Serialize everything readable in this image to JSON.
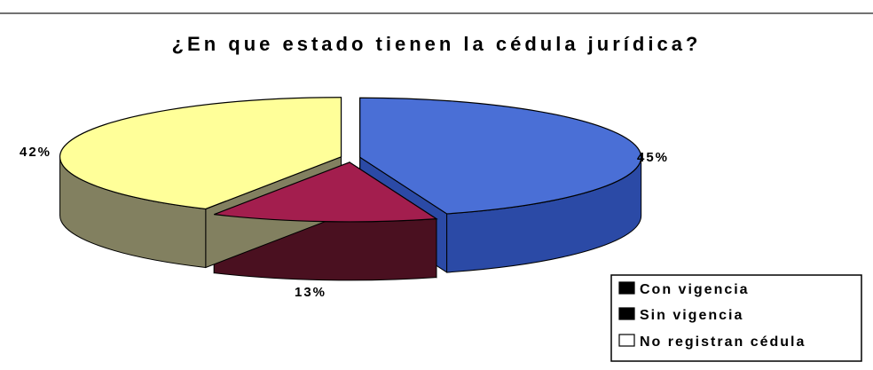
{
  "chart_data": {
    "type": "pie",
    "title": "¿En que estado tienen la cédula jurídica?",
    "slices": [
      {
        "name": "Con vigencia",
        "value": 45,
        "label": "45%",
        "color": "#4a6fd6",
        "side_color": "#2b4aa6"
      },
      {
        "name": "Sin vigencia",
        "value": 13,
        "label": "13%",
        "color": "#a31e4e",
        "side_color": "#4a1020"
      },
      {
        "name": "No registran cédula",
        "value": 42,
        "label": "42%",
        "color": "#ffff99",
        "side_color": "#828060"
      }
    ],
    "legend": {
      "position": "bottom-right",
      "items": [
        "Con vigencia",
        "Sin vigencia",
        "No registran cédula"
      ],
      "swatch_colors": [
        "#000000",
        "#000000",
        "#ffffff"
      ]
    },
    "style": "3d-exploded-pie"
  }
}
